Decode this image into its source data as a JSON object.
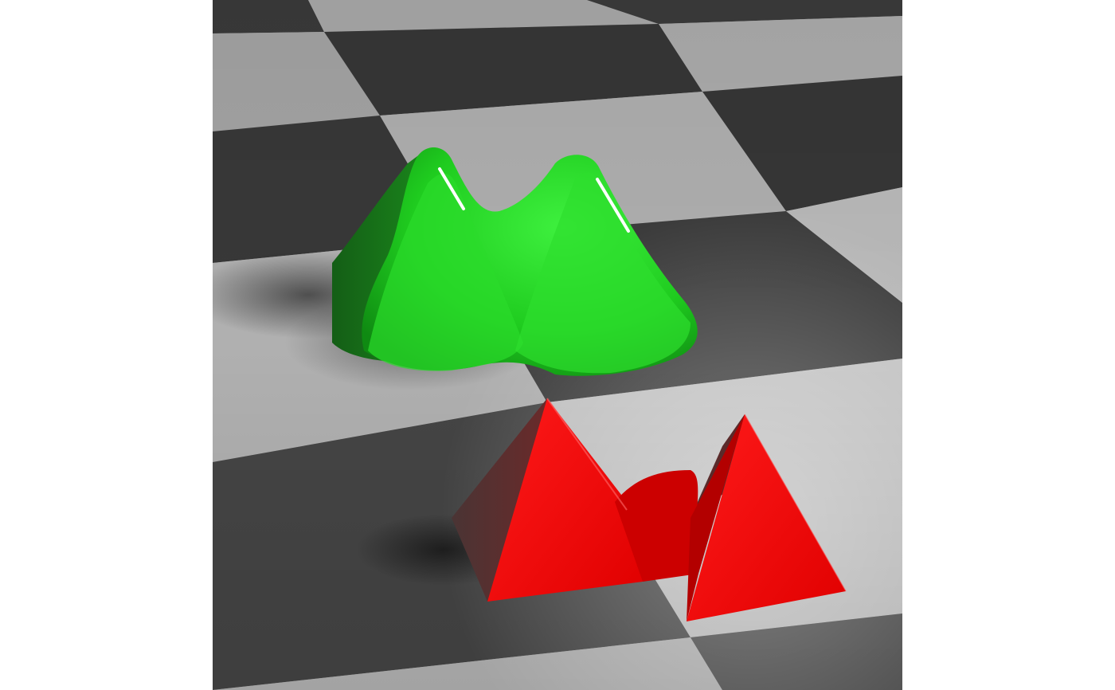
{
  "scene": {
    "background_color": "#ffffff",
    "floor": {
      "light_color": "#b4b4b4",
      "dark_color": "#383838",
      "pattern": "checkerboard"
    },
    "objects": [
      {
        "id": "green",
        "description_icon": "twin-peak-rounded-blob",
        "color": "#22d022",
        "highlight_color": "#ffffff"
      },
      {
        "id": "red",
        "description_icon": "twin-peak-sharp-prism",
        "color": "#ff0505",
        "shadow_side_color": "#3a2020"
      }
    ]
  }
}
